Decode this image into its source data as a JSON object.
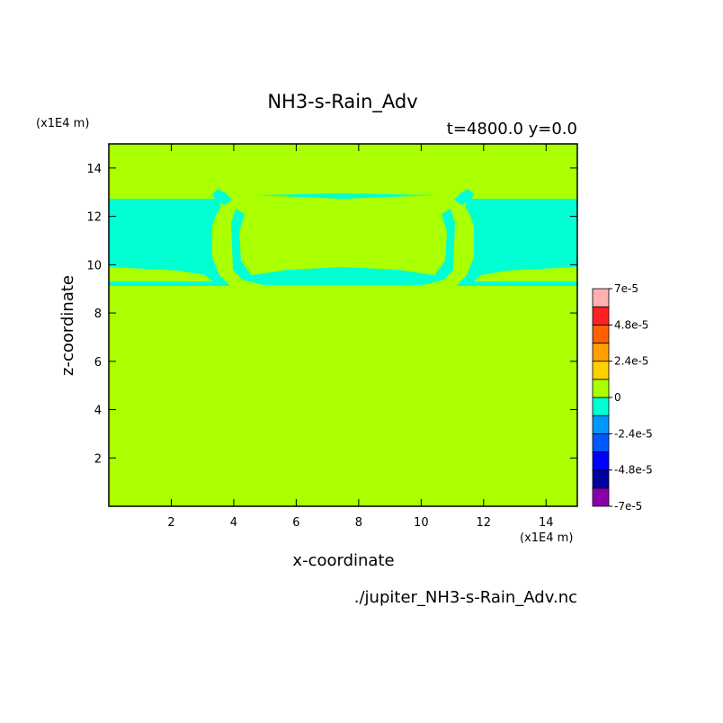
{
  "chart_data": {
    "type": "contour",
    "title": "NH3-s-Rain_Adv",
    "subtitle": "t=4800.0 y=0.0",
    "x_label": "x-coordinate",
    "y_label": "z-coordinate",
    "x_unit": "(x1E4 m)",
    "y_unit": "(x1E4 m)",
    "source": "./jupiter_NH3-s-Rain_Adv.nc",
    "xlim": [
      0,
      15
    ],
    "ylim": [
      0,
      15
    ],
    "xticks": [
      2,
      4,
      6,
      8,
      10,
      12,
      14
    ],
    "yticks": [
      2,
      4,
      6,
      8,
      10,
      12,
      14
    ],
    "colorbar": {
      "colors": [
        "#8a00a8",
        "#0000a0",
        "#0000ff",
        "#0058ff",
        "#0098ff",
        "#00ffd2",
        "#aaff00",
        "#ffd000",
        "#ffa000",
        "#ff6000",
        "#ff2020",
        "#ffb0b0"
      ],
      "ticks": [
        {
          "value": -7e-05,
          "label": "-7e-5"
        },
        {
          "value": -4.8e-05,
          "label": "-4.8e-5"
        },
        {
          "value": -2.4e-05,
          "label": "-2.4e-5"
        },
        0,
        {
          "value": 2.4e-05,
          "label": "2.4e-5"
        },
        {
          "value": 4.8e-05,
          "label": "4.8e-5"
        },
        {
          "value": 7e-05,
          "label": "7e-5"
        }
      ]
    }
  }
}
